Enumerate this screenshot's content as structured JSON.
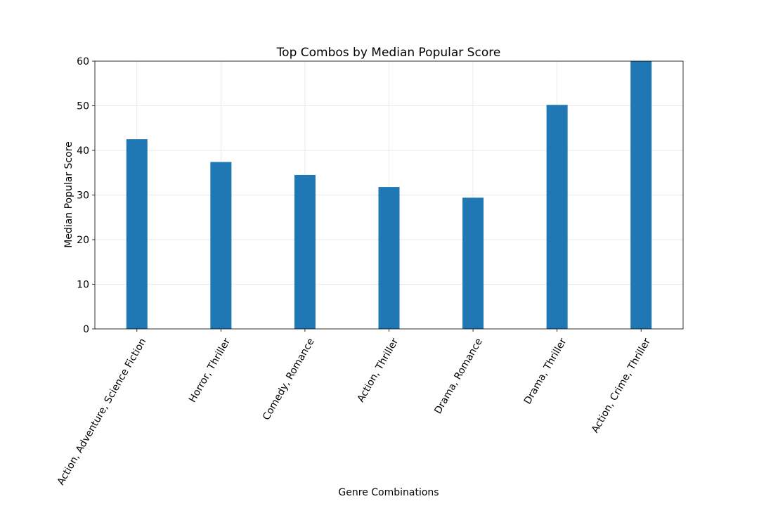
{
  "chart_data": {
    "type": "bar",
    "title": "Top Combos by Median Popular Score",
    "xlabel": "Genre Combinations",
    "ylabel": "Median Popular Score",
    "categories": [
      "Action, Adventure, Science Fiction",
      "Horror, Thriller",
      "Comedy, Romance",
      "Action, Thriller",
      "Drama, Romance",
      "Drama, Thriller",
      "Action, Crime, Thriller"
    ],
    "values": [
      42.5,
      37.4,
      34.5,
      31.8,
      29.4,
      50.2,
      60
    ],
    "ylim": [
      0,
      60
    ],
    "yticks": [
      "0",
      "10",
      "20",
      "30",
      "40",
      "50",
      "60"
    ],
    "grid": true,
    "bar_color": "#1f77b4"
  }
}
